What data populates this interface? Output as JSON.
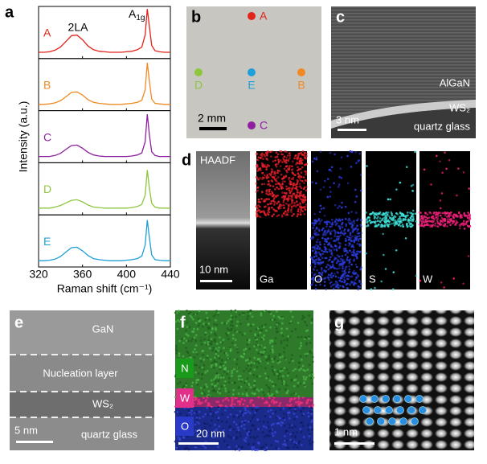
{
  "chart_data": {
    "type": "line",
    "panel_label": "a",
    "xlabel": "Raman shift (cm⁻¹)",
    "ylabel": "Intensity (a.u.)",
    "annotation_2la": "2LA",
    "annotation_a1g": "A",
    "annotation_a1g_sub": "1g",
    "x": [
      320,
      325,
      330,
      335,
      340,
      345,
      350,
      355,
      360,
      365,
      370,
      375,
      380,
      385,
      390,
      395,
      400,
      405,
      410,
      414,
      417,
      419,
      421,
      423,
      426,
      430,
      435,
      440
    ],
    "xlim": [
      320,
      440
    ],
    "xticks": [
      320,
      360,
      400,
      440
    ],
    "ylim": [
      0,
      1
    ],
    "series": [
      {
        "name": "A",
        "color": "#e2231a",
        "values": [
          0.12,
          0.12,
          0.13,
          0.16,
          0.22,
          0.33,
          0.44,
          0.45,
          0.36,
          0.24,
          0.17,
          0.14,
          0.13,
          0.12,
          0.12,
          0.12,
          0.13,
          0.14,
          0.17,
          0.22,
          0.45,
          0.95,
          0.6,
          0.25,
          0.15,
          0.13,
          0.12,
          0.12
        ]
      },
      {
        "name": "B",
        "color": "#f08a24",
        "values": [
          0.12,
          0.12,
          0.13,
          0.15,
          0.19,
          0.27,
          0.35,
          0.36,
          0.3,
          0.21,
          0.16,
          0.14,
          0.13,
          0.12,
          0.12,
          0.12,
          0.13,
          0.14,
          0.16,
          0.2,
          0.4,
          0.92,
          0.55,
          0.22,
          0.14,
          0.13,
          0.12,
          0.12
        ]
      },
      {
        "name": "C",
        "color": "#8e1fa0",
        "values": [
          0.12,
          0.12,
          0.12,
          0.14,
          0.18,
          0.26,
          0.33,
          0.34,
          0.28,
          0.2,
          0.15,
          0.13,
          0.12,
          0.12,
          0.12,
          0.12,
          0.12,
          0.13,
          0.15,
          0.19,
          0.4,
          0.93,
          0.52,
          0.21,
          0.14,
          0.12,
          0.12,
          0.12
        ]
      },
      {
        "name": "D",
        "color": "#8dc63f",
        "values": [
          0.13,
          0.13,
          0.13,
          0.15,
          0.18,
          0.23,
          0.28,
          0.29,
          0.25,
          0.19,
          0.15,
          0.14,
          0.13,
          0.13,
          0.13,
          0.13,
          0.13,
          0.14,
          0.16,
          0.2,
          0.38,
          0.86,
          0.5,
          0.22,
          0.15,
          0.13,
          0.13,
          0.13
        ]
      },
      {
        "name": "E",
        "color": "#1f9fd8",
        "values": [
          0.12,
          0.12,
          0.13,
          0.15,
          0.2,
          0.29,
          0.37,
          0.38,
          0.31,
          0.22,
          0.16,
          0.14,
          0.13,
          0.12,
          0.12,
          0.12,
          0.13,
          0.14,
          0.16,
          0.21,
          0.42,
          0.9,
          0.55,
          0.23,
          0.14,
          0.13,
          0.12,
          0.12
        ]
      }
    ]
  },
  "panel_b": {
    "label": "b",
    "points": [
      "A",
      "B",
      "C",
      "D",
      "E"
    ],
    "scale_bar": "2 mm"
  },
  "panel_c": {
    "label": "c",
    "layers": [
      "AlGaN",
      "WS₂",
      "quartz glass"
    ],
    "scale_bar": "3 nm"
  },
  "panel_d": {
    "label": "d",
    "haadf": "HAADF",
    "maps": [
      "Ga",
      "O",
      "S",
      "W"
    ],
    "scale_bar": "10 nm"
  },
  "panel_e": {
    "label": "e",
    "layers": [
      "GaN",
      "Nucleation layer",
      "WS₂",
      "quartz glass"
    ],
    "scale_bar": "5 nm"
  },
  "panel_f": {
    "label": "f",
    "elements": [
      "N",
      "W",
      "O"
    ],
    "scale_bar": "20 nm"
  },
  "panel_g": {
    "label": "g",
    "scale_bar": "1 nm"
  }
}
